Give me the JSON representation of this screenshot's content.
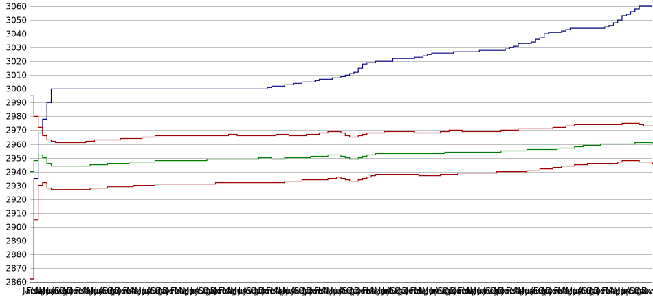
{
  "chart_data": {
    "type": "line",
    "title": "",
    "xlabel": "",
    "ylabel": "",
    "ylim": [
      2860,
      3060
    ],
    "yticks": [
      2860,
      2870,
      2880,
      2890,
      2900,
      2910,
      2920,
      2930,
      2940,
      2950,
      2960,
      2970,
      2980,
      2990,
      3000,
      3010,
      3020,
      3030,
      3040,
      3050,
      3060
    ],
    "grid": true,
    "legend": "none",
    "x_tick_labels": [
      "Jan",
      "Feb",
      "Mar",
      "Apr",
      "May",
      "Jun",
      "Jul",
      "Aug",
      "Sep",
      "Oct",
      "Nov",
      "Dec",
      "Jan",
      "Feb",
      "Mar",
      "Apr",
      "May",
      "Jun",
      "Jul",
      "Aug",
      "Sep",
      "Oct",
      "Nov",
      "Dec",
      "Jan",
      "Feb",
      "Mar",
      "Apr",
      "May",
      "Jun",
      "Jul",
      "Aug",
      "Sep",
      "Oct",
      "Nov",
      "Dec",
      "Jan",
      "Feb",
      "Mar",
      "Apr",
      "May",
      "Jun",
      "Jul",
      "Aug",
      "Sep",
      "Oct",
      "Nov",
      "Dec",
      "Jan",
      "Feb",
      "Mar",
      "Apr",
      "May",
      "Jun",
      "Jul",
      "Aug",
      "Sep",
      "Oct",
      "Nov",
      "Dec",
      "Jan",
      "Feb",
      "Mar",
      "Apr",
      "May",
      "Jun",
      "Jul",
      "Aug",
      "Sep",
      "Oct",
      "Nov",
      "Dec",
      "Jan",
      "Feb",
      "Mar",
      "Apr",
      "May",
      "Jun",
      "Jul",
      "Aug",
      "Sep",
      "Oct",
      "Nov",
      "Dec",
      "Jan",
      "Feb",
      "Mar",
      "Apr",
      "May",
      "Jun",
      "Jul",
      "Aug",
      "Sep",
      "Oct",
      "Nov",
      "Dec",
      "Jan",
      "Feb",
      "Mar",
      "Apr",
      "May",
      "Jun",
      "Jul",
      "Aug",
      "Sep",
      "Oct",
      "Nov",
      "Dec",
      "Jan",
      "Feb",
      "Mar",
      "Apr",
      "May",
      "Jun",
      "Jul",
      "Aug",
      "Sep",
      "Oct",
      "Nov",
      "Dec",
      "Jan",
      "Feb",
      "Mar",
      "Apr",
      "May",
      "Jun",
      "Jul",
      "Aug",
      "Sep",
      "Oct",
      "Nov",
      "Dec",
      "Jan",
      "Feb",
      "Mar",
      "Apr",
      "May",
      "Jun",
      "Jul",
      "Aug",
      "Sep",
      "Oct",
      "Nov",
      "Dec",
      "Jan",
      "Feb",
      "Mar",
      "Apr",
      "May",
      "Jun",
      "Jul",
      "Aug",
      "Sep",
      "Oct",
      "Nov",
      "Dec"
    ],
    "x_count": 145,
    "series": [
      {
        "color": "#000080",
        "values": [
          2862,
          2935,
          2968,
          2978,
          2990,
          3000,
          3000,
          3000,
          3000,
          3000,
          3000,
          3000,
          3000,
          3000,
          3000,
          3000,
          3000,
          3000,
          3000,
          3000,
          3000,
          3000,
          3000,
          3000,
          3000,
          3000,
          3000,
          3000,
          3000,
          3000,
          3000,
          3000,
          3000,
          3000,
          3000,
          3000,
          3000,
          3000,
          3000,
          3000,
          3000,
          3000,
          3000,
          3000,
          3000,
          3000,
          3000,
          3000,
          3000,
          3000,
          3000,
          3000,
          3000,
          3000,
          3000,
          3001,
          3002,
          3002,
          3002,
          3003,
          3003,
          3004,
          3004,
          3005,
          3005,
          3005,
          3006,
          3007,
          3007,
          3007,
          3008,
          3008,
          3009,
          3010,
          3011,
          3012,
          3015,
          3018,
          3019,
          3019,
          3020,
          3020,
          3020,
          3020,
          3022,
          3022,
          3022,
          3022,
          3022,
          3023,
          3023,
          3024,
          3025,
          3026,
          3026,
          3026,
          3026,
          3026,
          3027,
          3027,
          3027,
          3027,
          3027,
          3027,
          3028,
          3028,
          3028,
          3028,
          3028,
          3028,
          3029,
          3030,
          3031,
          3033,
          3033,
          3033,
          3034,
          3036,
          3037,
          3040,
          3041,
          3041,
          3041,
          3042,
          3043,
          3044,
          3044,
          3044,
          3044,
          3044,
          3044,
          3044,
          3044,
          3045,
          3046,
          3048,
          3050,
          3053,
          3054,
          3056,
          3058,
          3060,
          3060,
          3060,
          3060
        ]
      },
      {
        "color": "#a00000",
        "values": [
          2995,
          2980,
          2972,
          2966,
          2963,
          2962,
          2961,
          2961,
          2961,
          2961,
          2961,
          2961,
          2961,
          2962,
          2962,
          2963,
          2963,
          2963,
          2963,
          2963,
          2963,
          2964,
          2964,
          2964,
          2964,
          2964,
          2965,
          2965,
          2965,
          2966,
          2966,
          2966,
          2966,
          2966,
          2966,
          2966,
          2966,
          2966,
          2966,
          2966,
          2966,
          2966,
          2966,
          2966,
          2966,
          2966,
          2967,
          2967,
          2966,
          2966,
          2966,
          2966,
          2966,
          2966,
          2966,
          2966,
          2966,
          2967,
          2967,
          2967,
          2966,
          2966,
          2966,
          2966,
          2967,
          2967,
          2967,
          2968,
          2968,
          2969,
          2969,
          2969,
          2968,
          2966,
          2965,
          2965,
          2966,
          2967,
          2968,
          2968,
          2968,
          2968,
          2969,
          2969,
          2969,
          2969,
          2969,
          2969,
          2969,
          2968,
          2968,
          2968,
          2968,
          2968,
          2968,
          2969,
          2969,
          2970,
          2970,
          2970,
          2969,
          2969,
          2969,
          2969,
          2969,
          2969,
          2969,
          2969,
          2969,
          2970,
          2970,
          2970,
          2970,
          2971,
          2971,
          2971,
          2971,
          2971,
          2971,
          2971,
          2971,
          2972,
          2972,
          2972,
          2973,
          2973,
          2974,
          2974,
          2974,
          2974,
          2974,
          2974,
          2974,
          2974,
          2974,
          2974,
          2974,
          2975,
          2975,
          2975,
          2975,
          2974,
          2973,
          2973,
          2973,
          2973,
          2973
        ]
      },
      {
        "color": "#008000",
        "values": [
          2940,
          2948,
          2952,
          2950,
          2946,
          2944,
          2944,
          2944,
          2944,
          2944,
          2944,
          2944,
          2944,
          2944,
          2945,
          2945,
          2945,
          2945,
          2946,
          2946,
          2946,
          2946,
          2946,
          2947,
          2947,
          2947,
          2947,
          2947,
          2947,
          2948,
          2948,
          2948,
          2948,
          2948,
          2948,
          2948,
          2948,
          2948,
          2948,
          2948,
          2948,
          2949,
          2949,
          2949,
          2949,
          2949,
          2949,
          2949,
          2949,
          2949,
          2949,
          2949,
          2949,
          2950,
          2950,
          2950,
          2949,
          2949,
          2949,
          2950,
          2950,
          2950,
          2950,
          2950,
          2950,
          2951,
          2951,
          2951,
          2951,
          2952,
          2952,
          2952,
          2951,
          2950,
          2949,
          2949,
          2950,
          2951,
          2952,
          2952,
          2953,
          2953,
          2953,
          2953,
          2953,
          2953,
          2953,
          2953,
          2953,
          2953,
          2953,
          2953,
          2953,
          2953,
          2953,
          2953,
          2954,
          2954,
          2954,
          2954,
          2954,
          2954,
          2954,
          2954,
          2954,
          2954,
          2954,
          2954,
          2954,
          2955,
          2955,
          2955,
          2955,
          2955,
          2955,
          2956,
          2956,
          2956,
          2956,
          2956,
          2956,
          2956,
          2957,
          2957,
          2957,
          2957,
          2958,
          2958,
          2959,
          2959,
          2959,
          2959,
          2960,
          2960,
          2960,
          2960,
          2960,
          2960,
          2960,
          2960,
          2961,
          2961,
          2961,
          2961,
          2960,
          2960,
          2960,
          2960,
          2959,
          2959,
          2959
        ]
      },
      {
        "color": "#a00000",
        "values": [
          2862,
          2905,
          2930,
          2932,
          2928,
          2927,
          2927,
          2927,
          2927,
          2927,
          2927,
          2927,
          2927,
          2927,
          2928,
          2928,
          2928,
          2928,
          2929,
          2929,
          2929,
          2929,
          2929,
          2929,
          2930,
          2930,
          2930,
          2930,
          2930,
          2931,
          2931,
          2931,
          2931,
          2931,
          2931,
          2931,
          2931,
          2931,
          2931,
          2931,
          2931,
          2931,
          2931,
          2932,
          2932,
          2932,
          2932,
          2932,
          2932,
          2932,
          2932,
          2932,
          2932,
          2932,
          2932,
          2932,
          2932,
          2932,
          2932,
          2933,
          2933,
          2933,
          2933,
          2934,
          2934,
          2934,
          2934,
          2934,
          2934,
          2935,
          2935,
          2936,
          2935,
          2934,
          2933,
          2933,
          2934,
          2935,
          2936,
          2937,
          2938,
          2938,
          2938,
          2938,
          2938,
          2938,
          2938,
          2938,
          2938,
          2938,
          2937,
          2937,
          2937,
          2937,
          2937,
          2938,
          2938,
          2938,
          2938,
          2939,
          2939,
          2939,
          2939,
          2939,
          2939,
          2939,
          2939,
          2939,
          2940,
          2940,
          2940,
          2940,
          2940,
          2940,
          2940,
          2941,
          2941,
          2941,
          2942,
          2942,
          2942,
          2943,
          2943,
          2944,
          2944,
          2944,
          2945,
          2945,
          2945,
          2946,
          2946,
          2946,
          2946,
          2946,
          2946,
          2946,
          2947,
          2948,
          2948,
          2948,
          2948,
          2947,
          2947,
          2947,
          2946,
          2946,
          2946
        ]
      }
    ]
  }
}
